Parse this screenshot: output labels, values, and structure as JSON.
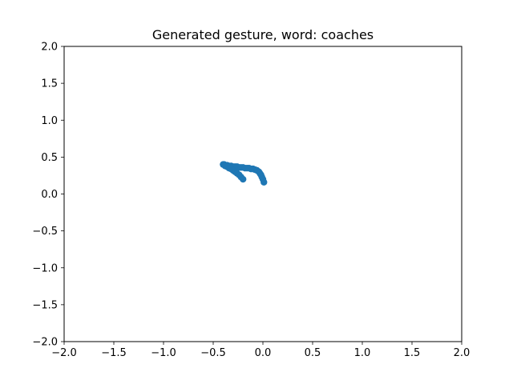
{
  "chart_data": {
    "type": "scatter",
    "title": "Generated gesture, word: coaches",
    "xlabel": "",
    "ylabel": "",
    "xlim": [
      -2.0,
      2.0
    ],
    "ylim": [
      -2.0,
      2.0
    ],
    "x_ticks": [
      "−2.0",
      "−1.5",
      "−1.0",
      "−0.5",
      "0.0",
      "0.5",
      "1.0",
      "1.5",
      "2.0"
    ],
    "y_ticks": [
      "−2.0",
      "−1.5",
      "−1.0",
      "−0.5",
      "0.0",
      "0.5",
      "1.0",
      "1.5",
      "2.0"
    ],
    "grid": false,
    "legend": "none",
    "color": "#1f77b4",
    "series": [
      {
        "x": [
          -0.4,
          -0.39,
          -0.38,
          -0.36,
          -0.34,
          -0.32,
          -0.3,
          -0.28,
          -0.26,
          -0.24,
          -0.22,
          -0.2,
          -0.18,
          -0.16,
          -0.14,
          -0.12,
          -0.1,
          -0.08,
          -0.06,
          -0.04,
          -0.03,
          -0.02,
          -0.01,
          0.0,
          0.01,
          -0.38,
          -0.36,
          -0.34,
          -0.32,
          -0.3,
          -0.28,
          -0.26,
          -0.24,
          -0.22,
          -0.2
        ],
        "y": [
          0.4,
          0.4,
          0.39,
          0.39,
          0.38,
          0.38,
          0.37,
          0.37,
          0.37,
          0.36,
          0.36,
          0.36,
          0.35,
          0.35,
          0.35,
          0.34,
          0.34,
          0.33,
          0.32,
          0.3,
          0.28,
          0.26,
          0.23,
          0.2,
          0.16,
          0.38,
          0.37,
          0.35,
          0.34,
          0.32,
          0.3,
          0.28,
          0.26,
          0.23,
          0.2
        ]
      }
    ]
  }
}
